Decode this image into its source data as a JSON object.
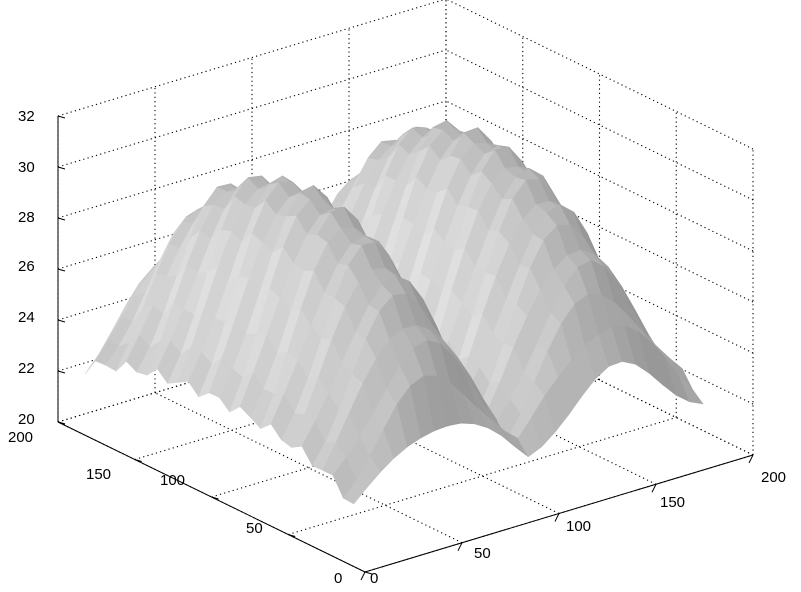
{
  "chart_data": {
    "type": "surface3d",
    "colormap": "gray",
    "shading": "interp",
    "grid": true,
    "x_axis": {
      "range": [
        0,
        200
      ],
      "ticks": [
        0,
        50,
        100,
        150,
        200
      ]
    },
    "y_axis": {
      "range": [
        0,
        200
      ],
      "ticks": [
        0,
        50,
        100,
        150,
        200
      ]
    },
    "z_axis": {
      "range": [
        20,
        32
      ],
      "ticks": [
        20,
        22,
        24,
        26,
        28,
        30,
        32
      ]
    },
    "x_tick_labels": [
      "0",
      "50",
      "100",
      "150",
      "200"
    ],
    "y_tick_labels": [
      "0",
      "50",
      "100",
      "150",
      "200"
    ],
    "z_tick_labels": [
      "20",
      "22",
      "24",
      "26",
      "28",
      "30",
      "32"
    ],
    "surface": {
      "description_of_shape": "two parallel arch-shaped ridges running along y, separated by a groove near x≈100",
      "peak_z": 30.5,
      "base_z": 21
    }
  }
}
